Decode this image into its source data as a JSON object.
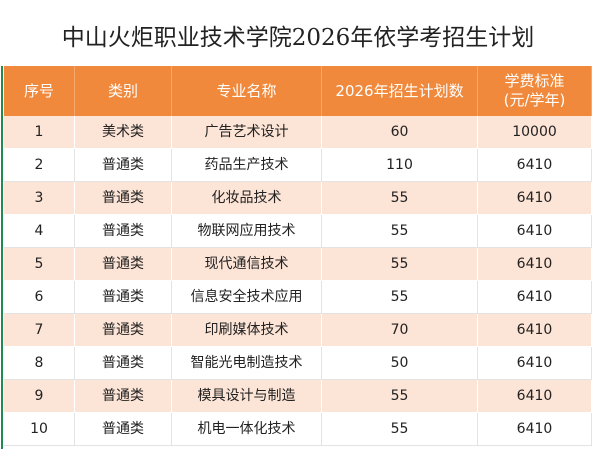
{
  "title": "中山火炬职业技术学院2026年依学考招生计划",
  "table": {
    "header": [
      "序号",
      "类别",
      "专业名称",
      "2026年招生计划数",
      "学费标准\n(元/学年)"
    ],
    "rows": [
      [
        1,
        "美术类",
        "广告艺术设计",
        60,
        10000
      ],
      [
        2,
        "普通类",
        "药品生产技术",
        110,
        6410
      ],
      [
        3,
        "普通类",
        "化妆品技术",
        55,
        6410
      ],
      [
        4,
        "普通类",
        "物联网应用技术",
        55,
        6410
      ],
      [
        5,
        "普通类",
        "现代通信技术",
        55,
        6410
      ],
      [
        6,
        "普通类",
        "信息安全技术应用",
        55,
        6410
      ],
      [
        7,
        "普通类",
        "印刷媒体技术",
        70,
        6410
      ],
      [
        8,
        "普通类",
        "智能光电制造技术",
        50,
        6410
      ],
      [
        9,
        "普通类",
        "模具设计与制造",
        55,
        6410
      ],
      [
        10,
        "普通类",
        "机电一体化技术",
        55,
        6410
      ]
    ]
  }
}
